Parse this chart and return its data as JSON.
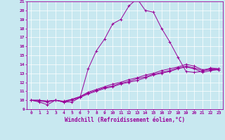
{
  "title": "",
  "xlabel": "Windchill (Refroidissement éolien,°C)",
  "ylabel": "",
  "xlim": [
    -0.5,
    23.5
  ],
  "ylim": [
    9,
    21
  ],
  "yticks": [
    9,
    10,
    11,
    12,
    13,
    14,
    15,
    16,
    17,
    18,
    19,
    20,
    21
  ],
  "xticks": [
    0,
    1,
    2,
    3,
    4,
    5,
    6,
    7,
    8,
    9,
    10,
    11,
    12,
    13,
    14,
    15,
    16,
    17,
    18,
    19,
    20,
    21,
    22,
    23
  ],
  "background_color": "#c8e8f0",
  "line_color": "#990099",
  "grid_color": "#ffffff",
  "line1_x": [
    0,
    1,
    2,
    3,
    4,
    5,
    6,
    7,
    8,
    9,
    10,
    11,
    12,
    13,
    14,
    15,
    16,
    17,
    18,
    19,
    20,
    21,
    22,
    23
  ],
  "line1_y": [
    10.0,
    9.8,
    9.5,
    10.0,
    9.8,
    9.8,
    10.3,
    13.5,
    15.5,
    16.8,
    18.5,
    19.0,
    20.5,
    21.3,
    20.0,
    19.8,
    18.0,
    16.5,
    14.8,
    13.2,
    13.1,
    13.2,
    13.6,
    13.5
  ],
  "line2_x": [
    0,
    1,
    2,
    3,
    4,
    5,
    6,
    7,
    8,
    9,
    10,
    11,
    12,
    13,
    14,
    15,
    16,
    17,
    18,
    19,
    20,
    21,
    22,
    23
  ],
  "line2_y": [
    10.0,
    10.0,
    9.9,
    10.0,
    9.9,
    10.1,
    10.4,
    10.9,
    11.2,
    11.5,
    11.8,
    12.0,
    12.3,
    12.5,
    12.8,
    13.0,
    13.3,
    13.5,
    13.7,
    14.0,
    13.8,
    13.4,
    13.5,
    13.5
  ],
  "line3_x": [
    0,
    1,
    2,
    3,
    4,
    5,
    6,
    7,
    8,
    9,
    10,
    11,
    12,
    13,
    14,
    15,
    16,
    17,
    18,
    19,
    20,
    21,
    22,
    23
  ],
  "line3_y": [
    10.0,
    10.0,
    9.9,
    10.0,
    9.8,
    10.1,
    10.4,
    10.8,
    11.1,
    11.4,
    11.6,
    11.9,
    12.1,
    12.4,
    12.6,
    12.9,
    13.1,
    13.3,
    13.6,
    13.8,
    13.6,
    13.3,
    13.4,
    13.4
  ],
  "line4_x": [
    0,
    1,
    2,
    3,
    4,
    5,
    6,
    7,
    8,
    9,
    10,
    11,
    12,
    13,
    14,
    15,
    16,
    17,
    18,
    19,
    20,
    21,
    22,
    23
  ],
  "line4_y": [
    10.0,
    9.9,
    9.8,
    10.0,
    9.8,
    10.0,
    10.3,
    10.7,
    11.0,
    11.3,
    11.5,
    11.8,
    12.0,
    12.2,
    12.5,
    12.8,
    13.0,
    13.2,
    13.5,
    13.7,
    13.5,
    13.1,
    13.3,
    13.4
  ],
  "tick_fontsize": 4.5,
  "xlabel_fontsize": 5.5
}
